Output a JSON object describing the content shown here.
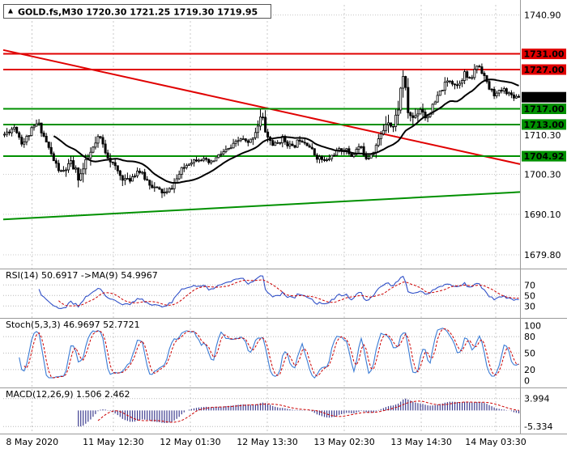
{
  "ui": {
    "chart_title": "GOLD.fs,M30 1720.30 1721.25 1719.30 1719.95"
  },
  "colors": {
    "background": "#ffffff",
    "grid": "#c8c8c8",
    "candle": "#000000",
    "ma_line": "#000000",
    "resistance": "#e00000",
    "support": "#009000",
    "last_price_badge": "#000000",
    "separator": "#9a9a9a",
    "rsi_line": "#3050c8",
    "rsi_ma_line": "#cc0000",
    "stoch_k_line": "#3a7bd5",
    "stoch_d_line": "#cc0000",
    "macd_hist": "#3d3d8f",
    "macd_signal": "#cc0000",
    "level_grid": "#b8b8b8"
  },
  "chart_data": {
    "type": "candlestick",
    "symbol": "GOLD.fs",
    "timeframe": "M30",
    "current_bar": {
      "open": 1720.3,
      "high": 1721.25,
      "low": 1719.3,
      "close": 1719.95
    },
    "last_price": 1719.95,
    "bars": 210,
    "price_axis": {
      "min": 1676.5,
      "max": 1743.5,
      "ticks": [
        {
          "label": "1740.90",
          "price": 1740.9
        },
        {
          "label": "1710.30",
          "price": 1710.3
        },
        {
          "label": "1700.30",
          "price": 1700.3
        },
        {
          "label": "1690.10",
          "price": 1690.1
        },
        {
          "label": "1679.80",
          "price": 1679.8
        }
      ]
    },
    "price_lines": [
      {
        "name": "resistance-1731",
        "label": "1731.00",
        "price": 1731.0,
        "color": "#e00000",
        "draw_line": true
      },
      {
        "name": "resistance-1727",
        "label": "1727.00",
        "price": 1727.0,
        "color": "#e00000",
        "draw_line": true
      },
      {
        "name": "last-price",
        "label": "1719.95",
        "price": 1719.95,
        "color": "#000000",
        "draw_line": false
      },
      {
        "name": "support-1717",
        "label": "1717.00",
        "price": 1717.0,
        "color": "#009000",
        "draw_line": true
      },
      {
        "name": "support-1713",
        "label": "1713.00",
        "price": 1713.0,
        "color": "#009000",
        "draw_line": true
      },
      {
        "name": "support-1704",
        "label": "1704.92",
        "price": 1704.92,
        "color": "#009000",
        "draw_line": true
      }
    ],
    "trendlines": [
      {
        "name": "descending-trendline",
        "color": "#e00000",
        "from_t": 0,
        "from_price": 1732.0,
        "to_t": 1,
        "to_price": 1702.9
      },
      {
        "name": "ascending-trendline",
        "color": "#009000",
        "from_t": 0,
        "from_price": 1688.8,
        "to_t": 1,
        "to_price": 1695.8
      }
    ],
    "close_keyframes": [
      [
        0.0,
        1710.5,
        2.5
      ],
      [
        0.02,
        1712.5,
        2.2
      ],
      [
        0.035,
        1708.0,
        2.2
      ],
      [
        0.05,
        1711.0,
        3.0
      ],
      [
        0.065,
        1713.5,
        2.5
      ],
      [
        0.08,
        1709.0,
        2.2
      ],
      [
        0.095,
        1704.0,
        3.0
      ],
      [
        0.11,
        1700.5,
        3.2
      ],
      [
        0.13,
        1703.0,
        4.0
      ],
      [
        0.145,
        1699.5,
        5.0
      ],
      [
        0.155,
        1702.0,
        5.0
      ],
      [
        0.165,
        1705.0,
        4.0
      ],
      [
        0.185,
        1710.0,
        3.0
      ],
      [
        0.195,
        1706.5,
        3.0
      ],
      [
        0.21,
        1703.0,
        3.0
      ],
      [
        0.225,
        1700.0,
        3.0
      ],
      [
        0.24,
        1698.5,
        3.0
      ],
      [
        0.26,
        1701.5,
        2.5
      ],
      [
        0.275,
        1699.0,
        2.5
      ],
      [
        0.295,
        1696.5,
        3.0
      ],
      [
        0.315,
        1695.3,
        3.0
      ],
      [
        0.33,
        1698.0,
        2.5
      ],
      [
        0.345,
        1701.5,
        2.5
      ],
      [
        0.36,
        1703.5,
        2.0
      ],
      [
        0.38,
        1704.5,
        2.0
      ],
      [
        0.4,
        1703.0,
        2.0
      ],
      [
        0.42,
        1705.5,
        2.0
      ],
      [
        0.44,
        1707.0,
        2.5
      ],
      [
        0.46,
        1709.5,
        2.5
      ],
      [
        0.475,
        1708.0,
        2.0
      ],
      [
        0.49,
        1712.0,
        4.0
      ],
      [
        0.5,
        1715.5,
        4.0
      ],
      [
        0.51,
        1710.0,
        4.0
      ],
      [
        0.525,
        1707.5,
        3.0
      ],
      [
        0.54,
        1709.5,
        2.5
      ],
      [
        0.56,
        1707.0,
        2.5
      ],
      [
        0.575,
        1709.5,
        2.5
      ],
      [
        0.59,
        1708.0,
        2.0
      ],
      [
        0.605,
        1705.0,
        2.5
      ],
      [
        0.625,
        1703.5,
        2.5
      ],
      [
        0.64,
        1705.5,
        2.0
      ],
      [
        0.66,
        1707.0,
        2.5
      ],
      [
        0.675,
        1705.0,
        2.5
      ],
      [
        0.69,
        1707.5,
        2.5
      ],
      [
        0.705,
        1704.5,
        3.0
      ],
      [
        0.72,
        1707.0,
        3.0
      ],
      [
        0.735,
        1711.0,
        4.0
      ],
      [
        0.745,
        1715.0,
        5.0
      ],
      [
        0.755,
        1712.0,
        4.0
      ],
      [
        0.765,
        1717.0,
        5.0
      ],
      [
        0.775,
        1726.0,
        6.0
      ],
      [
        0.785,
        1716.0,
        5.0
      ],
      [
        0.795,
        1714.5,
        4.0
      ],
      [
        0.81,
        1717.5,
        4.0
      ],
      [
        0.82,
        1714.5,
        3.0
      ],
      [
        0.835,
        1718.0,
        3.0
      ],
      [
        0.85,
        1722.0,
        3.0
      ],
      [
        0.865,
        1724.5,
        3.0
      ],
      [
        0.88,
        1723.0,
        2.5
      ],
      [
        0.895,
        1726.0,
        3.0
      ],
      [
        0.905,
        1724.0,
        2.5
      ],
      [
        0.92,
        1728.5,
        3.0
      ],
      [
        0.93,
        1726.5,
        3.0
      ],
      [
        0.94,
        1722.5,
        3.0
      ],
      [
        0.955,
        1720.5,
        2.5
      ],
      [
        0.97,
        1722.0,
        2.0
      ],
      [
        0.985,
        1720.5,
        2.0
      ],
      [
        1.0,
        1719.95,
        2.0
      ]
    ],
    "time_axis": [
      {
        "label": "8 May 2020",
        "t": 0.056
      },
      {
        "label": "11 May 12:30",
        "t": 0.213
      },
      {
        "label": "12 May 01:30",
        "t": 0.362
      },
      {
        "label": "12 May 13:30",
        "t": 0.511
      },
      {
        "label": "13 May 02:30",
        "t": 0.66
      },
      {
        "label": "13 May 14:30",
        "t": 0.809
      },
      {
        "label": "14 May 03:30",
        "t": 0.953
      }
    ],
    "indicators": {
      "rsi": {
        "label": "RSI(14) 50.6917 ->MA(9) 54.9967",
        "period": 14,
        "ma_period": 9,
        "current": 50.6917,
        "ma_current": 54.9967,
        "levels": [
          {
            "label": "70",
            "value": 70
          },
          {
            "label": "50",
            "value": 50
          },
          {
            "label": "30",
            "value": 30
          }
        ],
        "scale_min": 12,
        "scale_max": 95
      },
      "stoch": {
        "label": "Stoch(5,3,3) 46.9697 52.7721",
        "k_period": 5,
        "d_period": 3,
        "slowing": 3,
        "current_k": 46.9697,
        "current_d": 52.7721,
        "levels": [
          {
            "label": "100",
            "value": 100,
            "dotted": false
          },
          {
            "label": "80",
            "value": 80,
            "dotted": true
          },
          {
            "label": "50",
            "value": 50,
            "dotted": true
          },
          {
            "label": "20",
            "value": 20,
            "dotted": true
          },
          {
            "label": "0",
            "value": 0,
            "dotted": false
          }
        ],
        "scale_min": -8,
        "scale_max": 108
      },
      "macd": {
        "label": "MACD(12,26,9) 1.506 2.462",
        "fast": 12,
        "slow": 26,
        "signal": 9,
        "current_macd": 1.506,
        "current_signal": 2.462,
        "scale_labels": [
          {
            "label": "3.994",
            "value": 3.994
          },
          {
            "label": "-5.334",
            "value": -5.334
          }
        ],
        "scale_min": -6.9,
        "scale_max": 6.6,
        "hist_max": 3.994,
        "hist_min": -5.334
      }
    }
  }
}
